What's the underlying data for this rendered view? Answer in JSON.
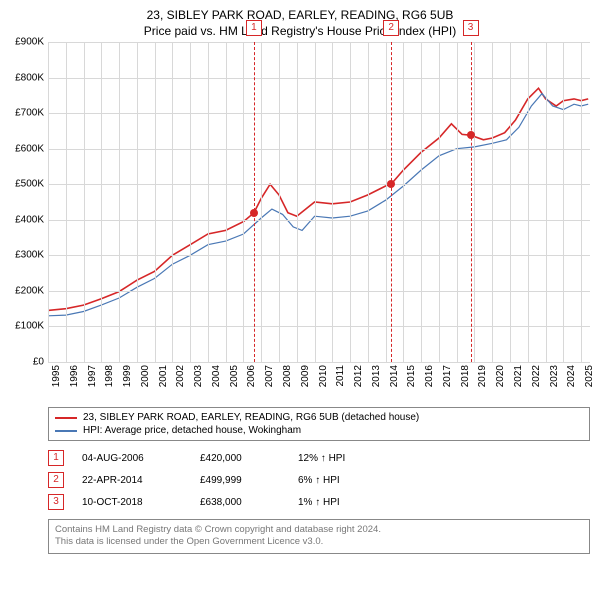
{
  "title": {
    "line1": "23, SIBLEY PARK ROAD, EARLEY, READING, RG6 5UB",
    "line2": "Price paid vs. HM Land Registry's House Price Index (HPI)"
  },
  "chart": {
    "type": "line",
    "background_color": "#ffffff",
    "grid_color": "#d8d8d8",
    "ylim": [
      0,
      900000
    ],
    "ytick_step": 100000,
    "yticks": [
      "£0",
      "£100K",
      "£200K",
      "£300K",
      "£400K",
      "£500K",
      "£600K",
      "£700K",
      "£800K",
      "£900K"
    ],
    "xlim_years": [
      1995,
      2025.5
    ],
    "xticks": [
      "1995",
      "1996",
      "1997",
      "1998",
      "1999",
      "2000",
      "2001",
      "2002",
      "2003",
      "2004",
      "2005",
      "2006",
      "2007",
      "2008",
      "2009",
      "2010",
      "2011",
      "2012",
      "2013",
      "2014",
      "2015",
      "2016",
      "2017",
      "2018",
      "2019",
      "2020",
      "2021",
      "2022",
      "2023",
      "2024",
      "2025"
    ],
    "series": [
      {
        "name": "property",
        "color": "#d62728",
        "width": 1.6,
        "label": "23, SIBLEY PARK ROAD, EARLEY, READING, RG6 5UB (detached house)",
        "points": [
          [
            1995.0,
            145000
          ],
          [
            1996.0,
            150000
          ],
          [
            1997.0,
            160000
          ],
          [
            1998.0,
            178000
          ],
          [
            1999.0,
            198000
          ],
          [
            2000.0,
            230000
          ],
          [
            2001.0,
            255000
          ],
          [
            2002.0,
            300000
          ],
          [
            2003.0,
            330000
          ],
          [
            2004.0,
            360000
          ],
          [
            2005.0,
            370000
          ],
          [
            2006.0,
            395000
          ],
          [
            2006.59,
            420000
          ],
          [
            2007.0,
            460000
          ],
          [
            2007.5,
            500000
          ],
          [
            2008.0,
            470000
          ],
          [
            2008.5,
            420000
          ],
          [
            2009.0,
            410000
          ],
          [
            2010.0,
            450000
          ],
          [
            2011.0,
            445000
          ],
          [
            2012.0,
            450000
          ],
          [
            2013.0,
            470000
          ],
          [
            2014.0,
            495000
          ],
          [
            2014.31,
            499999
          ],
          [
            2015.0,
            540000
          ],
          [
            2016.0,
            590000
          ],
          [
            2017.0,
            630000
          ],
          [
            2017.7,
            670000
          ],
          [
            2018.3,
            640000
          ],
          [
            2018.78,
            638000
          ],
          [
            2019.5,
            625000
          ],
          [
            2020.0,
            630000
          ],
          [
            2020.7,
            645000
          ],
          [
            2021.3,
            680000
          ],
          [
            2022.0,
            740000
          ],
          [
            2022.6,
            770000
          ],
          [
            2023.0,
            740000
          ],
          [
            2023.6,
            720000
          ],
          [
            2024.0,
            735000
          ],
          [
            2024.6,
            740000
          ],
          [
            2025.0,
            735000
          ],
          [
            2025.4,
            740000
          ]
        ]
      },
      {
        "name": "hpi",
        "color": "#4a78b5",
        "width": 1.2,
        "label": "HPI: Average price, detached house, Wokingham",
        "points": [
          [
            1995.0,
            130000
          ],
          [
            1996.0,
            132000
          ],
          [
            1997.0,
            142000
          ],
          [
            1998.0,
            160000
          ],
          [
            1999.0,
            180000
          ],
          [
            2000.0,
            210000
          ],
          [
            2001.0,
            235000
          ],
          [
            2002.0,
            275000
          ],
          [
            2003.0,
            300000
          ],
          [
            2004.0,
            330000
          ],
          [
            2005.0,
            340000
          ],
          [
            2006.0,
            360000
          ],
          [
            2007.0,
            405000
          ],
          [
            2007.6,
            430000
          ],
          [
            2008.2,
            415000
          ],
          [
            2008.8,
            380000
          ],
          [
            2009.3,
            370000
          ],
          [
            2010.0,
            410000
          ],
          [
            2011.0,
            405000
          ],
          [
            2012.0,
            410000
          ],
          [
            2013.0,
            425000
          ],
          [
            2014.0,
            455000
          ],
          [
            2015.0,
            495000
          ],
          [
            2016.0,
            540000
          ],
          [
            2017.0,
            580000
          ],
          [
            2018.0,
            600000
          ],
          [
            2019.0,
            605000
          ],
          [
            2020.0,
            615000
          ],
          [
            2020.8,
            625000
          ],
          [
            2021.5,
            660000
          ],
          [
            2022.2,
            720000
          ],
          [
            2022.8,
            755000
          ],
          [
            2023.4,
            720000
          ],
          [
            2024.0,
            710000
          ],
          [
            2024.6,
            725000
          ],
          [
            2025.0,
            720000
          ],
          [
            2025.4,
            725000
          ]
        ]
      }
    ],
    "sale_markers": [
      {
        "n": "1",
        "year": 2006.59,
        "price": 420000,
        "color": "#d62728"
      },
      {
        "n": "2",
        "year": 2014.31,
        "price": 499999,
        "color": "#d62728"
      },
      {
        "n": "3",
        "year": 2018.78,
        "price": 638000,
        "color": "#d62728"
      }
    ]
  },
  "legend": {
    "items": [
      {
        "color": "#d62728",
        "label": "23, SIBLEY PARK ROAD, EARLEY, READING, RG6 5UB (detached house)"
      },
      {
        "color": "#4a78b5",
        "label": "HPI: Average price, detached house, Wokingham"
      }
    ]
  },
  "sales": [
    {
      "n": "1",
      "date": "04-AUG-2006",
      "price": "£420,000",
      "pct": "12% ↑ HPI",
      "color": "#d62728"
    },
    {
      "n": "2",
      "date": "22-APR-2014",
      "price": "£499,999",
      "pct": "6% ↑ HPI",
      "color": "#d62728"
    },
    {
      "n": "3",
      "date": "10-OCT-2018",
      "price": "£638,000",
      "pct": "1% ↑ HPI",
      "color": "#d62728"
    }
  ],
  "footer": {
    "line1": "Contains HM Land Registry data © Crown copyright and database right 2024.",
    "line2": "This data is licensed under the Open Government Licence v3.0."
  }
}
